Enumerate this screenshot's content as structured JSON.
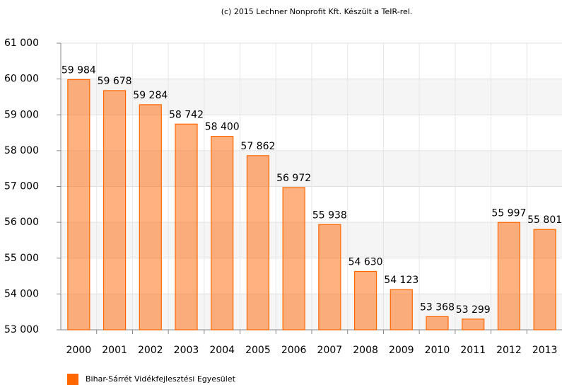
{
  "chart_data": {
    "type": "bar",
    "title": "(c) 2015 Lechner Nonprofit Kft. Készült a TeIR-rel.",
    "categories": [
      "2000",
      "2001",
      "2002",
      "2003",
      "2004",
      "2005",
      "2006",
      "2007",
      "2008",
      "2009",
      "2010",
      "2011",
      "2012",
      "2013"
    ],
    "series": [
      {
        "name": "Bihar-Sárrét Vidékfejlesztési Egyesület",
        "color": "#ff6600",
        "values": [
          59984,
          59678,
          59284,
          58742,
          58400,
          57862,
          56972,
          55938,
          54630,
          54123,
          53368,
          53299,
          55997,
          55801
        ],
        "value_labels": [
          "59 984",
          "59 678",
          "59 284",
          "58 742",
          "58 400",
          "57 862",
          "56 972",
          "55 938",
          "54 630",
          "54 123",
          "53 368",
          "53 299",
          "55 997",
          "55 801"
        ]
      }
    ],
    "ylim": [
      53000,
      61000
    ],
    "yticks": [
      {
        "value": 53000,
        "label": "53 000"
      },
      {
        "value": 54000,
        "label": "54 000"
      },
      {
        "value": 55000,
        "label": "55 000"
      },
      {
        "value": 56000,
        "label": "56 000"
      },
      {
        "value": 57000,
        "label": "57 000"
      },
      {
        "value": 58000,
        "label": "58 000"
      },
      {
        "value": 59000,
        "label": "59 000"
      },
      {
        "value": 60000,
        "label": "60 000"
      },
      {
        "value": 61000,
        "label": "61 000"
      }
    ],
    "grid": true
  }
}
